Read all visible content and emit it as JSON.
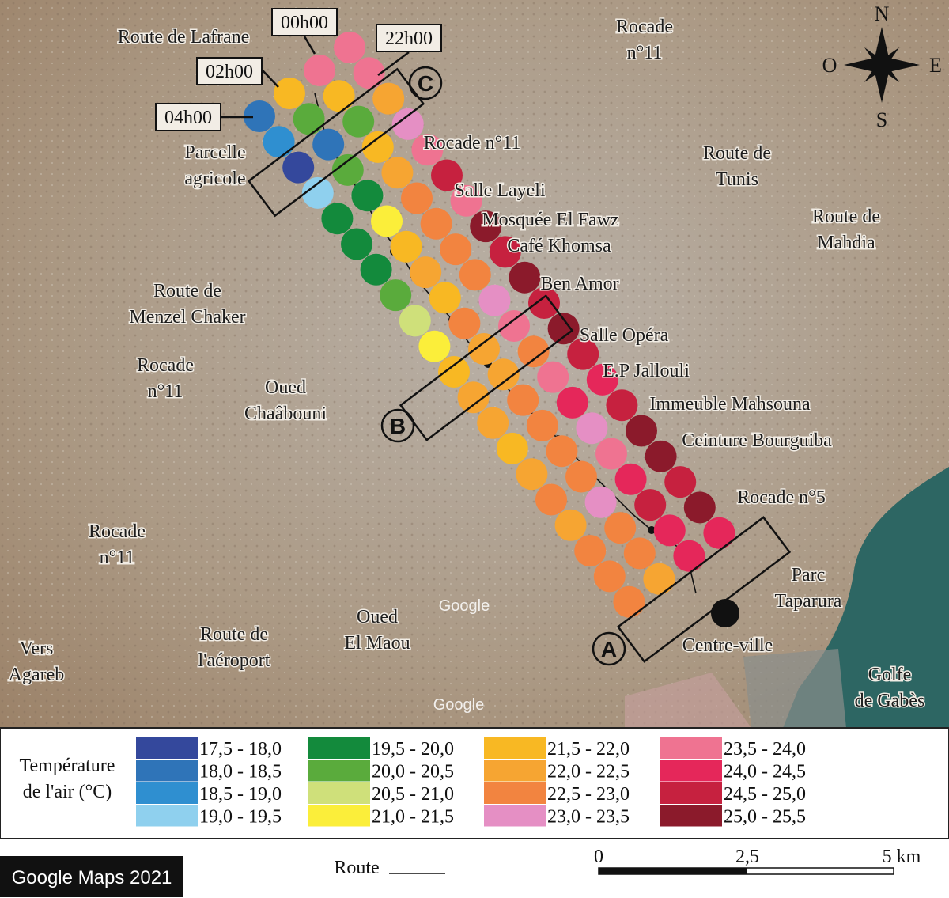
{
  "places": [
    {
      "lines": [
        "Route de Lafrane"
      ]
    },
    {
      "lines": [
        "Rocade",
        "n°11"
      ]
    },
    {
      "lines": [
        "Parcelle",
        "agricole"
      ]
    },
    {
      "lines": [
        "Rocade n°11"
      ]
    },
    {
      "lines": [
        "Route de",
        "Tunis"
      ]
    },
    {
      "lines": [
        "Salle Layeli"
      ]
    },
    {
      "lines": [
        "Route de",
        "Mahdia"
      ]
    },
    {
      "lines": [
        "Mosquée El Fawz"
      ]
    },
    {
      "lines": [
        "Café Khomsa"
      ]
    },
    {
      "lines": [
        "Ben Amor"
      ]
    },
    {
      "lines": [
        "Route de",
        "Menzel Chaker"
      ]
    },
    {
      "lines": [
        "Salle Opéra"
      ]
    },
    {
      "lines": [
        "Rocade",
        "n°11"
      ]
    },
    {
      "lines": [
        "E.P Jallouli"
      ]
    },
    {
      "lines": [
        "Oued",
        "Chaâbouni"
      ]
    },
    {
      "lines": [
        "Immeuble Mahsouna"
      ]
    },
    {
      "lines": [
        "Ceinture Bourguiba"
      ]
    },
    {
      "lines": [
        "Rocade n°5"
      ]
    },
    {
      "lines": [
        "Rocade",
        "n°11"
      ]
    },
    {
      "lines": [
        "Parc",
        "Taparura"
      ]
    },
    {
      "lines": [
        "Oued",
        "El Maou"
      ]
    },
    {
      "lines": [
        "Route de",
        "l'aéroport"
      ]
    },
    {
      "lines": [
        "Centre-ville"
      ]
    },
    {
      "lines": [
        "Vers",
        "Agareb"
      ]
    },
    {
      "lines": [
        "Golfe",
        "de Gabès"
      ]
    }
  ],
  "times": [
    "04h00",
    "02h00",
    "00h00",
    "22h00"
  ],
  "sites": [
    "A",
    "B",
    "C"
  ],
  "watermarks": [
    "Google",
    "Google"
  ],
  "compass": {
    "n": "N",
    "s": "S",
    "e": "E",
    "w": "O"
  },
  "legend": {
    "title": [
      "Température",
      "de l'air (°C)"
    ],
    "classes": [
      {
        "label": "17,5 - 18,0",
        "color": "#34489c"
      },
      {
        "label": "18,0 - 18,5",
        "color": "#2f74b8"
      },
      {
        "label": "18,5 - 19,0",
        "color": "#2f8fd0"
      },
      {
        "label": "19,0 - 19,5",
        "color": "#8fd0ee"
      },
      {
        "label": "19,5 - 20,0",
        "color": "#138a3c"
      },
      {
        "label": "20,0 - 20,5",
        "color": "#5aab3c"
      },
      {
        "label": "20,5 - 21,0",
        "color": "#cfe07a"
      },
      {
        "label": "21,0 - 21,5",
        "color": "#fbee3a"
      },
      {
        "label": "21,5 - 22,0",
        "color": "#f8b823"
      },
      {
        "label": "22,0 - 22,5",
        "color": "#f6a532"
      },
      {
        "label": "22,5 - 23,0",
        "color": "#f28440"
      },
      {
        "label": "23,0 - 23,5",
        "color": "#e58fc4"
      },
      {
        "label": "23,5 - 24,0",
        "color": "#ef7391"
      },
      {
        "label": "24,0 - 24,5",
        "color": "#e5275a"
      },
      {
        "label": "24,5 - 25,0",
        "color": "#c6213f"
      },
      {
        "label": "25,0 - 25,5",
        "color": "#8b1a2b"
      }
    ]
  },
  "footer": {
    "source": "Google Maps 2021",
    "route": "Route",
    "scale": [
      "0",
      "2,5",
      "5 km"
    ]
  }
}
